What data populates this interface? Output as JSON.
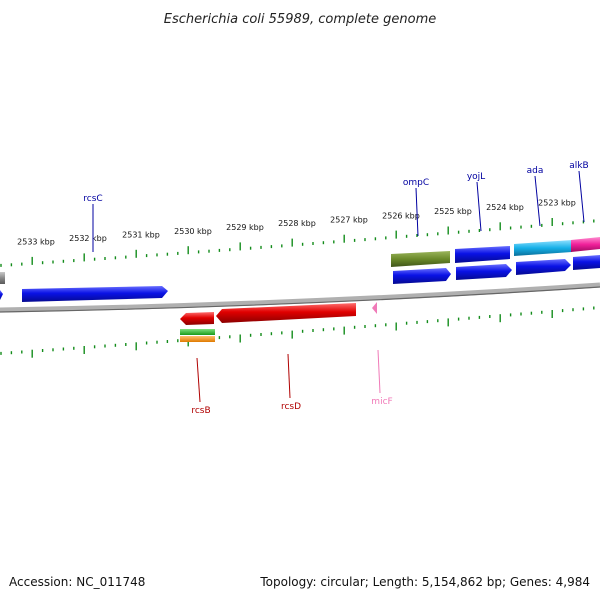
{
  "title": "Escherichia coli 55989, complete genome",
  "accession": "Accession: NC_011748",
  "summary": "Topology: circular; Length: 5,154,862 bp; Genes: 4,984",
  "colors": {
    "backbone": "#888888",
    "tick": "#138c1b",
    "forward_gene": "#0a12e6",
    "reverse_gene": "#e00000",
    "gene_label_forward": "#0000a0",
    "gene_label_reverse": "#b00000",
    "ncRNA": "#f07ab8"
  },
  "ticks": [
    {
      "label": "2533 kbp"
    },
    {
      "label": "2532 kbp"
    },
    {
      "label": "2531 kbp"
    },
    {
      "label": "2530 kbp"
    },
    {
      "label": "2529 kbp"
    },
    {
      "label": "2528 kbp"
    },
    {
      "label": "2527 kbp"
    },
    {
      "label": "2526 kbp"
    },
    {
      "label": "2525 kbp"
    },
    {
      "label": "2524 kbp"
    },
    {
      "label": "2523 kbp"
    }
  ],
  "gene_labels": [
    {
      "name": "rcsC",
      "strand": "forward"
    },
    {
      "name": "ompC",
      "strand": "forward"
    },
    {
      "name": "yojL",
      "strand": "forward"
    },
    {
      "name": "ada",
      "strand": "forward"
    },
    {
      "name": "alkB",
      "strand": "forward"
    },
    {
      "name": "rcsB",
      "strand": "reverse"
    },
    {
      "name": "rcsD",
      "strand": "reverse"
    },
    {
      "name": "micF",
      "strand": "ncRNA"
    }
  ]
}
